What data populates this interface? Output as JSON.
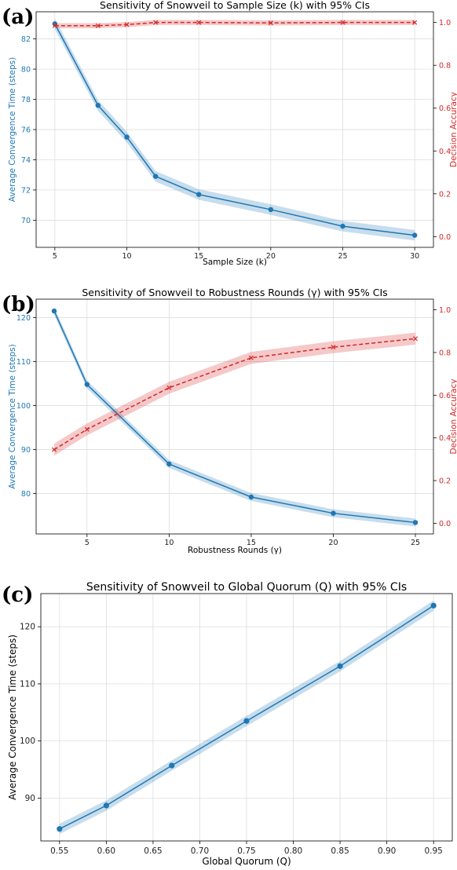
{
  "chart_data": [
    {
      "panel_label": "(a)",
      "type": "line",
      "title": "Sensitivity of Snowveil to Sample Size (k) with 95% CIs",
      "xlabel": "Sample Size (k)",
      "ylabel": "Average Convergence Time (steps)",
      "y2label": "Decision Accuracy",
      "grid": true,
      "xlim": [
        3.7,
        31.3
      ],
      "xticks": [
        5,
        10,
        15,
        20,
        25,
        30
      ],
      "xtick_labels": [
        "5",
        "10",
        "15",
        "20",
        "25",
        "30"
      ],
      "ylim": [
        68.2,
        83.8
      ],
      "yticks": [
        70,
        72,
        74,
        76,
        78,
        80,
        82
      ],
      "ytick_labels": [
        "70",
        "72",
        "74",
        "76",
        "78",
        "80",
        "82"
      ],
      "y2lim": [
        -0.05,
        1.05
      ],
      "y2ticks": [
        0.0,
        0.2,
        0.4,
        0.6,
        0.8,
        1.0
      ],
      "y2tick_labels": [
        "0.0",
        "0.2",
        "0.4",
        "0.6",
        "0.8",
        "1.0"
      ],
      "x": [
        5,
        8,
        10,
        12,
        15,
        20,
        25,
        30
      ],
      "series": [
        {
          "axis": "left",
          "color": "#1f77b4",
          "style": "solid",
          "marker": "circle",
          "values": [
            83.0,
            77.6,
            75.5,
            72.9,
            71.7,
            70.7,
            69.6,
            69.0
          ],
          "ci": 0.35
        },
        {
          "axis": "right",
          "color": "#d62728",
          "style": "dashed",
          "marker": "x",
          "values": [
            0.985,
            0.985,
            0.99,
            1.0,
            1.0,
            0.998,
            1.0,
            1.0
          ],
          "ci": 0.012
        }
      ]
    },
    {
      "panel_label": "(b)",
      "type": "line",
      "title": "Sensitivity of Snowveil to Robustness Rounds (γ) with 95% CIs",
      "xlabel": "Robustness Rounds (γ)",
      "ylabel": "Average Convergence Time (steps)",
      "y2label": "Decision Accuracy",
      "grid": true,
      "xlim": [
        1.9,
        26.1
      ],
      "xticks": [
        5,
        10,
        15,
        20,
        25
      ],
      "xtick_labels": [
        "5",
        "10",
        "15",
        "20",
        "25"
      ],
      "ylim": [
        70.8,
        124.2
      ],
      "yticks": [
        80,
        90,
        100,
        110,
        120
      ],
      "ytick_labels": [
        "80",
        "90",
        "100",
        "110",
        "120"
      ],
      "y2lim": [
        -0.05,
        1.05
      ],
      "y2ticks": [
        0.0,
        0.2,
        0.4,
        0.6,
        0.8,
        1.0
      ],
      "y2tick_labels": [
        "0.0",
        "0.2",
        "0.4",
        "0.6",
        "0.8",
        "1.0"
      ],
      "x": [
        3,
        5,
        10,
        15,
        20,
        25
      ],
      "series": [
        {
          "axis": "left",
          "color": "#1f77b4",
          "style": "solid",
          "marker": "circle",
          "values": [
            121.5,
            104.8,
            86.7,
            79.2,
            75.5,
            73.4
          ],
          "ci": 0.9
        },
        {
          "axis": "right",
          "color": "#d62728",
          "style": "dashed",
          "marker": "x",
          "values": [
            0.345,
            0.44,
            0.635,
            0.775,
            0.825,
            0.865
          ],
          "ci": 0.028
        }
      ]
    },
    {
      "panel_label": "(c)",
      "type": "line",
      "title": "Sensitivity of Snowveil to Global Quorum (Q) with 95% CIs",
      "xlabel": "Global Quorum (Q)",
      "ylabel": "Average Convergence Time (steps)",
      "grid": true,
      "xlim": [
        0.53,
        0.97
      ],
      "xticks": [
        0.55,
        0.6,
        0.65,
        0.7,
        0.75,
        0.8,
        0.85,
        0.9,
        0.95
      ],
      "xtick_labels": [
        "0.55",
        "0.60",
        "0.65",
        "0.70",
        "0.75",
        "0.80",
        "0.85",
        "0.90",
        "0.95"
      ],
      "ylim": [
        82.5,
        125.8
      ],
      "yticks": [
        90,
        100,
        110,
        120
      ],
      "ytick_labels": [
        "90",
        "100",
        "110",
        "120"
      ],
      "x": [
        0.55,
        0.6,
        0.67,
        0.75,
        0.85,
        0.95
      ],
      "series": [
        {
          "axis": "left",
          "color": "#1f77b4",
          "style": "solid",
          "marker": "circle",
          "values": [
            84.6,
            88.7,
            95.7,
            103.5,
            113.1,
            123.7
          ],
          "ci": 0.9
        }
      ]
    }
  ]
}
